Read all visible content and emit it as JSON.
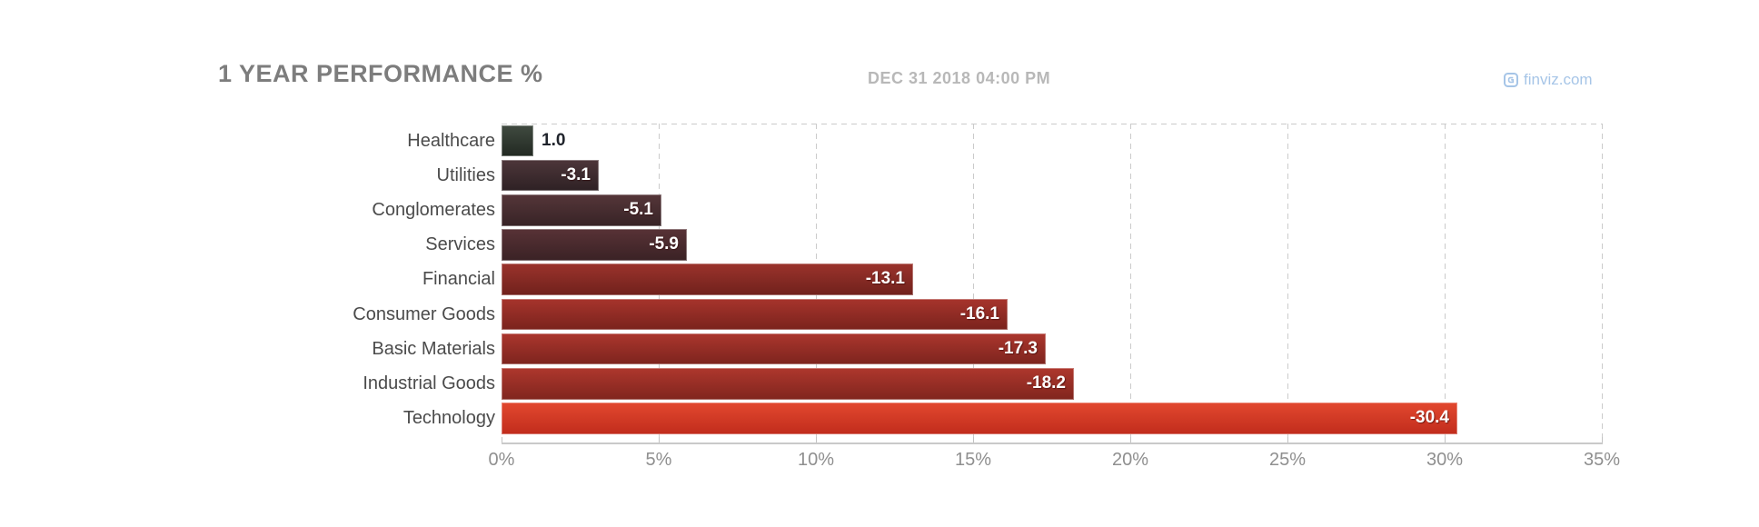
{
  "header": {
    "title": "1 YEAR PERFORMANCE %",
    "timestamp": "DEC 31 2018 04:00 PM",
    "brand": "finviz.com"
  },
  "chart_data": {
    "type": "bar",
    "orientation": "horizontal",
    "title": "1 YEAR PERFORMANCE %",
    "subtitle": "DEC 31 2018 04:00 PM",
    "source": "finviz.com",
    "categories": [
      "Healthcare",
      "Utilities",
      "Conglomerates",
      "Services",
      "Financial",
      "Consumer Goods",
      "Basic Materials",
      "Industrial Goods",
      "Technology"
    ],
    "values": [
      1.0,
      -3.1,
      -5.1,
      -5.9,
      -13.1,
      -16.1,
      -17.3,
      -18.2,
      -30.4
    ],
    "value_labels": [
      "1.0",
      "-3.1",
      "-5.1",
      "-5.9",
      "-13.1",
      "-16.1",
      "-17.3",
      "-18.2",
      "-30.4"
    ],
    "bar_colors": [
      {
        "top": "#404a40",
        "bottom": "#222922"
      },
      {
        "top": "#4d363a",
        "bottom": "#2e2124"
      },
      {
        "top": "#553639",
        "bottom": "#372326"
      },
      {
        "top": "#583236",
        "bottom": "#3a2225"
      },
      {
        "top": "#9b332c",
        "bottom": "#70211c"
      },
      {
        "top": "#a7342c",
        "bottom": "#7a231d"
      },
      {
        "top": "#ab362d",
        "bottom": "#7d241e"
      },
      {
        "top": "#ae372d",
        "bottom": "#80251e"
      },
      {
        "top": "#e2482f",
        "bottom": "#c12c1c"
      }
    ],
    "xlabel": "",
    "ylabel": "",
    "x_axis": {
      "tick_labels": [
        "0%",
        "5%",
        "10%",
        "15%",
        "20%",
        "25%",
        "30%",
        "35%"
      ],
      "min": 0,
      "max": 35,
      "unit": "%",
      "note": "bar length encodes absolute value of performance"
    },
    "grid": "dashed vertical gridlines every 5%, dashed top border",
    "legend": "none",
    "colors": {
      "positive_bar": "#404a40",
      "negative_bar_bright": "#e2482f",
      "label_text": "#4b4b4b",
      "value_text_inside": "#ffffff",
      "value_text_outside": "#20242c",
      "title_text": "#7d7d7d",
      "timestamp_text": "#b8b8b8",
      "brand_text": "#a6c5e7",
      "axis": "#c9c9c9",
      "grid": "#cbcbcb",
      "tick_label": "#8f8f8f"
    }
  }
}
